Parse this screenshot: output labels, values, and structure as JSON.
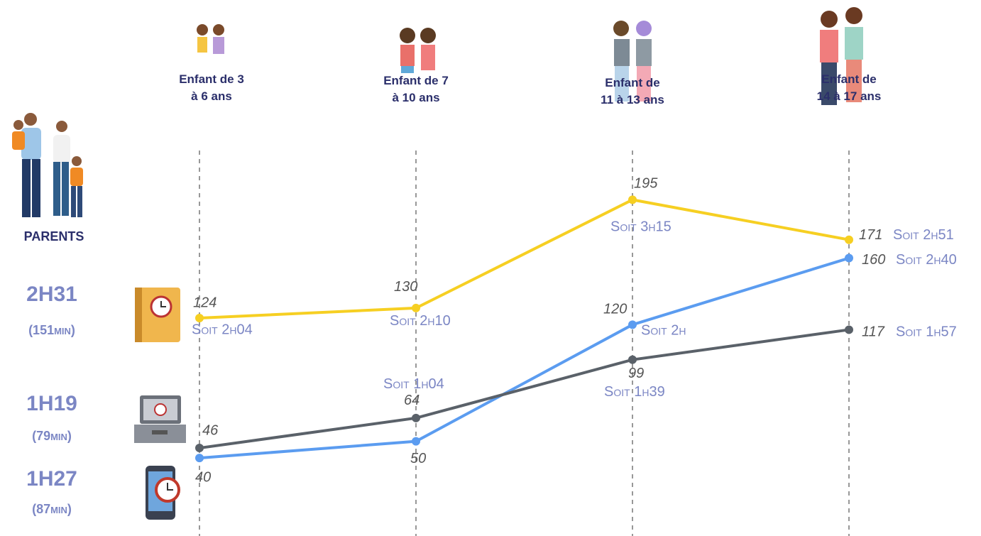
{
  "chart_data": {
    "type": "line",
    "categories": [
      "Enfant de 3\nà 6 ans",
      "Enfant de 7\nà 10 ans",
      "Enfant de\n11 à 13 ans",
      "Enfant de\n14 à 17 ans"
    ],
    "ylim": [
      0,
      300
    ],
    "series": [
      {
        "color": "#f6cf22",
        "values": [
          124,
          130,
          195,
          171
        ],
        "time_labels": [
          "Soit 2h04",
          "Soit 2h10",
          "Soit 3h15",
          "Soit 2h51"
        ]
      },
      {
        "color": "#5b9cf0",
        "values": [
          40,
          50,
          120,
          160
        ],
        "time_labels": [
          null,
          null,
          "Soit 2h",
          "Soit 2h40"
        ]
      },
      {
        "color": "#5a6169",
        "values": [
          46,
          64,
          99,
          117
        ],
        "time_labels": [
          null,
          "Soit 1h04",
          "Soit 1h39",
          "Soit 1h57"
        ]
      }
    ]
  },
  "parents": {
    "label": "PARENTS",
    "items": [
      {
        "time": "2H31",
        "minutes": "(151min)"
      },
      {
        "time": "1H19",
        "minutes": "(79min)"
      },
      {
        "time": "1H27",
        "minutes": "(87min)"
      }
    ]
  }
}
